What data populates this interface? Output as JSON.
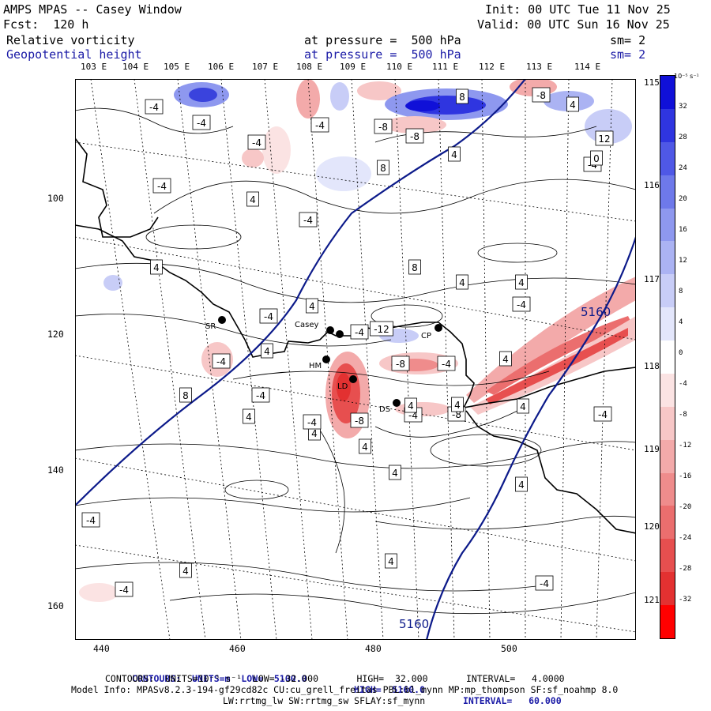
{
  "header": {
    "line1_left": "AMPS MPAS -- Casey Window",
    "line2_left": "Fcst:  120 h",
    "init": "Init: 00 UTC Tue 11 Nov 25",
    "valid": "Valid: 00 UTC Sun 16 Nov 25",
    "field1": "Relative vorticity",
    "field1_level": "at pressure =  500 hPa",
    "field1_sm": "sm= 2",
    "field2": "Geopotential height",
    "field2_level": "at pressure =  500 hPa",
    "field2_sm": "sm= 2"
  },
  "axes": {
    "top_lon_labels": [
      "103 E",
      "104 E",
      "105 E",
      "106 E",
      "107 E",
      "108 E",
      "109 E",
      "110 E",
      "111 E",
      "112 E",
      "113 E",
      "114 E"
    ],
    "right_lon_labels": [
      "115 E",
      "116 E",
      "117 E",
      "118 E",
      "119 E",
      "120 E",
      "121 E"
    ],
    "x_ticks": [
      "440",
      "460",
      "480",
      "500"
    ],
    "y_ticks": [
      "100",
      "120",
      "140",
      "160"
    ]
  },
  "colorbar": {
    "units": "10⁻⁵ s⁻¹",
    "labels": [
      "32",
      "28",
      "24",
      "20",
      "16",
      "12",
      "8",
      "4",
      "0",
      "-4",
      "-8",
      "-12",
      "-16",
      "-20",
      "-24",
      "-28",
      "-32"
    ],
    "colors": [
      "#1010d8",
      "#2f35e0",
      "#4f58e6",
      "#6e79ea",
      "#8e98ef",
      "#abb3f3",
      "#c8cdf7",
      "#e3e6fb",
      "#ffffff",
      "#fbe3e3",
      "#f7c7c7",
      "#f3aaaa",
      "#ef8c8c",
      "#eb6e6e",
      "#e74f4f",
      "#e33131",
      "#ff0000"
    ]
  },
  "stations": [
    {
      "name": "SR"
    },
    {
      "name": "Casey"
    },
    {
      "name": "HM"
    },
    {
      "name": "CP"
    },
    {
      "name": "DS"
    },
    {
      "name": "LD"
    }
  ],
  "contour_labels": {
    "height_a": "5160",
    "height_b": "5160",
    "vort": [
      "-4",
      "-4",
      "-4",
      "8",
      "-8",
      "-8",
      "-4",
      "-4",
      "8",
      "4",
      "-8",
      "4",
      "12",
      "-4",
      "0",
      "4",
      "-4",
      "8",
      "4",
      "4",
      "-4",
      "4",
      "4",
      "-4",
      "4",
      "-4",
      "8",
      "4",
      "-4",
      "-12",
      "-8",
      "-4",
      "4",
      "-8",
      "-4",
      "-8",
      "4",
      "-4",
      "4",
      "4",
      "4",
      "4",
      "-4",
      "-4",
      "4",
      "4",
      "-4",
      "4",
      "-4",
      "-4",
      "4"
    ]
  },
  "footer": {
    "line1_a": "CONTOURS:  UNITS=m  LOW=  5100.0",
    "line1_b": "HIGH=  5160.0",
    "line1_c": "INTERVAL=   60.000",
    "line2": "CONTOURS:  UNITS=10⁻⁵ s⁻¹  LOW= -32.000       HIGH=  32.000       INTERVAL=   4.0000",
    "line3": "Model Info: MPASv8.2.3-194-gf29cd82c CU:cu_grell_freitas PBL:bl_mynn MP:mp_thompson SF:sf_noahmp 8.0",
    "line4": "LW:rrtmg_lw SW:rrtmg_sw SFLAY:sf_mynn"
  }
}
